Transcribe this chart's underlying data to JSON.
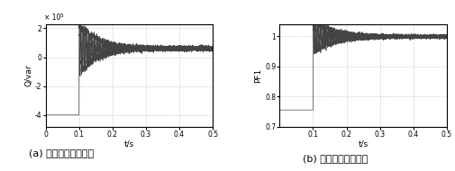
{
  "fig_width": 5.06,
  "fig_height": 1.9,
  "dpi": 100,
  "left_plot": {
    "xlabel": "t/s",
    "ylabel": "Q/var",
    "title_a": "(a) 系统基波无功功率",
    "xlim": [
      0,
      0.5
    ],
    "ylim": [
      -480000.0,
      230000.0
    ],
    "yticks": [
      -400000.0,
      -200000.0,
      0,
      200000.0
    ],
    "ytick_labels": [
      "-4",
      "-2",
      "0",
      "2"
    ],
    "xticks": [
      0,
      0.1,
      0.2,
      0.3,
      0.4,
      0.5
    ],
    "xtick_labels": [
      "0",
      "0.1",
      "0.2",
      "0.3",
      "0.4",
      "0.5"
    ],
    "exponent_label": "× 10  ",
    "exponent_sup": "5",
    "pre_switch_value": -400000.0,
    "switch_time": 0.1,
    "post_steady_value": 60000.0,
    "oscillation_decay": 0.06,
    "oscillation_amplitude": 180000.0,
    "oscillation_freq": 250,
    "noise_amplitude": 15000.0,
    "noise_amplitude_late": 8000.0
  },
  "right_plot": {
    "xlabel": "t/s",
    "ylabel": "PF1",
    "title_b": "(b) 系统基波功率因数",
    "xlim": [
      0,
      0.5
    ],
    "ylim": [
      0.7,
      1.04
    ],
    "yticks": [
      0.7,
      0.8,
      0.9,
      1.0
    ],
    "ytick_labels": [
      "0.7",
      "0.8",
      "0.9",
      "1"
    ],
    "xticks": [
      0.1,
      0.2,
      0.3,
      0.4,
      0.5
    ],
    "xtick_labels": [
      "0.1",
      "0.2",
      "0.3",
      "0.4",
      "0.5"
    ],
    "pre_switch_value": 0.755,
    "switch_time": 0.1,
    "post_steady_value": 0.998,
    "oscillation_decay": 0.07,
    "oscillation_amplitude": 0.055,
    "oscillation_freq": 250,
    "noise_amplitude": 0.006,
    "noise_amplitude_late": 0.003
  },
  "line_color": "#444444",
  "line_width": 0.5,
  "grid_color": "#bbbbbb",
  "grid_linestyle": ":",
  "grid_linewidth": 0.6,
  "bg_color": "#ffffff",
  "tick_fontsize": 5.5,
  "label_fontsize": 6.5,
  "caption_fontsize": 8
}
